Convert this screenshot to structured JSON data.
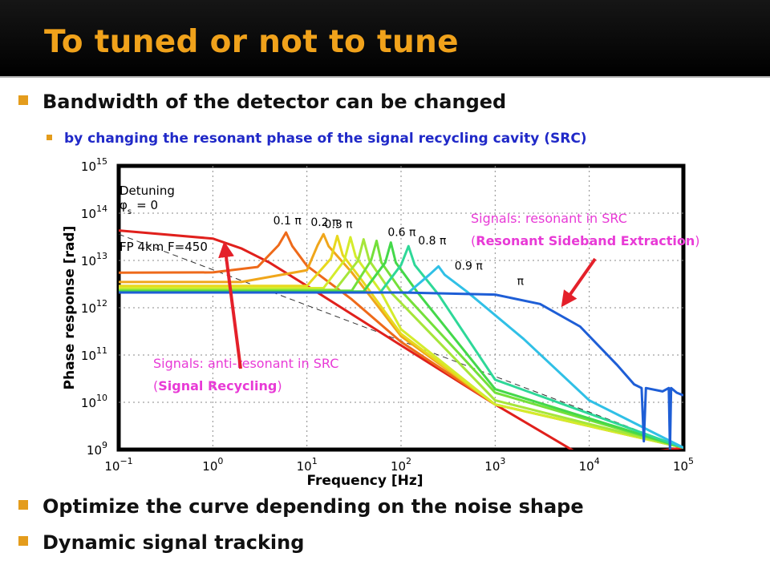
{
  "slide": {
    "title": "To tuned or not to tune",
    "bullets": {
      "b1": "Bandwidth of the detector can be changed",
      "b1_sub": "by changing the resonant phase of the signal recycling cavity (SRC)",
      "b2": "Optimize the curve depending on the noise shape",
      "b3": "Dynamic signal tracking"
    },
    "colors": {
      "title": "#f0a21b",
      "bullet_marker": "#e49c1c",
      "sub_text": "#2029c8",
      "annotation": "#e83ad6",
      "arrow": "#e4202a"
    }
  },
  "chart_data": {
    "type": "line",
    "xlabel": "Frequency [Hz]",
    "ylabel": "Phase response [rad]",
    "x_log": true,
    "y_log": true,
    "xlim": [
      0.1,
      100000
    ],
    "ylim": [
      1000000000,
      1000000000000000
    ],
    "x_ticks": [
      {
        "base": "10",
        "exp": "−1"
      },
      {
        "base": "10",
        "exp": "0"
      },
      {
        "base": "10",
        "exp": "1"
      },
      {
        "base": "10",
        "exp": "2"
      },
      {
        "base": "10",
        "exp": "3"
      },
      {
        "base": "10",
        "exp": "4"
      },
      {
        "base": "10",
        "exp": "5"
      }
    ],
    "y_ticks": [
      {
        "base": "10",
        "exp": "9"
      },
      {
        "base": "10",
        "exp": "10"
      },
      {
        "base": "10",
        "exp": "11"
      },
      {
        "base": "10",
        "exp": "12"
      },
      {
        "base": "10",
        "exp": "13"
      },
      {
        "base": "10",
        "exp": "14"
      },
      {
        "base": "10",
        "exp": "15"
      }
    ],
    "grid": true,
    "legend_title": "Detuning",
    "legend_phi": "φ",
    "legend_sub": "s",
    "legend_eq": "= 0",
    "reference_label": "FP 4km F=450",
    "series": [
      {
        "color": "#e0201c",
        "label": "",
        "points": [
          [
            0.1,
            43000000000000.0
          ],
          [
            1,
            29000000000000.0
          ],
          [
            2,
            18000000000000.0
          ],
          [
            4,
            9000000000000.0
          ],
          [
            10,
            2900000000000.0
          ],
          [
            100,
            160000000000.0
          ],
          [
            1000,
            9000000000.0
          ],
          [
            10000,
            600000000.0
          ],
          [
            100000,
            1100000000.0
          ]
        ]
      },
      {
        "color": "#ee6a1a",
        "label": "0.1 π",
        "points": [
          [
            0.1,
            5500000000000.0
          ],
          [
            1,
            5600000000000.0
          ],
          [
            3,
            7300000000000.0
          ],
          [
            5,
            21000000000000.0
          ],
          [
            6,
            39000000000000.0
          ],
          [
            7,
            20000000000000.0
          ],
          [
            10,
            7700000000000.0
          ],
          [
            30,
            1500000000000.0
          ],
          [
            100,
            190000000000.0
          ],
          [
            1000,
            9000000000.0
          ],
          [
            100000,
            1100000000.0
          ]
        ]
      },
      {
        "color": "#f0a61b",
        "label": "0.2 π",
        "points": [
          [
            0.1,
            3500000000000.0
          ],
          [
            2,
            3500000000000.0
          ],
          [
            10,
            6200000000000.0
          ],
          [
            13,
            21000000000000.0
          ],
          [
            15,
            36000000000000.0
          ],
          [
            17,
            20000000000000.0
          ],
          [
            30,
            5600000000000.0
          ],
          [
            100,
            250000000000.0
          ],
          [
            1000,
            9000000000.0
          ],
          [
            100000,
            1100000000.0
          ]
        ]
      },
      {
        "color": "#e8d81e",
        "label": "0.3 π",
        "points": [
          [
            0.1,
            2900000000000.0
          ],
          [
            10,
            2900000000000.0
          ],
          [
            18,
            11000000000000.0
          ],
          [
            21,
            33000000000000.0
          ],
          [
            24,
            13000000000000.0
          ],
          [
            40,
            3400000000000.0
          ],
          [
            100,
            280000000000.0
          ],
          [
            1000,
            9000000000.0
          ],
          [
            100000,
            1100000000.0
          ]
        ]
      },
      {
        "color": "#d4ec2c",
        "label": "",
        "points": [
          [
            0.1,
            2600000000000.0
          ],
          [
            15,
            2600000000000.0
          ],
          [
            25,
            10000000000000.0
          ],
          [
            29,
            31000000000000.0
          ],
          [
            33,
            12000000000000.0
          ],
          [
            60,
            2300000000000.0
          ],
          [
            100,
            350000000000.0
          ],
          [
            1000,
            9000000000.0
          ],
          [
            100000,
            1100000000.0
          ]
        ]
      },
      {
        "color": "#a6e63a",
        "label": "",
        "points": [
          [
            0.1,
            2400000000000.0
          ],
          [
            20,
            2400000000000.0
          ],
          [
            35,
            10000000000000.0
          ],
          [
            40,
            28000000000000.0
          ],
          [
            46,
            10000000000000.0
          ],
          [
            80,
            2000000000000.0
          ],
          [
            1000,
            11000000000.0
          ],
          [
            100000,
            1100000000.0
          ]
        ]
      },
      {
        "color": "#74e03a",
        "label": "",
        "points": [
          [
            0.1,
            2300000000000.0
          ],
          [
            30,
            2300000000000.0
          ],
          [
            48,
            10000000000000.0
          ],
          [
            55,
            26000000000000.0
          ],
          [
            62,
            9000000000000.0
          ],
          [
            100,
            2300000000000.0
          ],
          [
            1000,
            16000000000.0
          ],
          [
            100000,
            1100000000.0
          ]
        ]
      },
      {
        "color": "#44d84a",
        "label": "0.6 π",
        "points": [
          [
            0.1,
            2200000000000.0
          ],
          [
            40,
            2200000000000.0
          ],
          [
            68,
            9000000000000.0
          ],
          [
            78,
            24000000000000.0
          ],
          [
            88,
            9000000000000.0
          ],
          [
            150,
            2100000000000.0
          ],
          [
            1000,
            19000000000.0
          ],
          [
            100000,
            1100000000.0
          ]
        ]
      },
      {
        "color": "#2ed898",
        "label": "0.8 π",
        "points": [
          [
            0.1,
            2100000000000.0
          ],
          [
            60,
            2100000000000.0
          ],
          [
            100,
            8000000000000.0
          ],
          [
            120,
            20000000000000.0
          ],
          [
            140,
            8000000000000.0
          ],
          [
            250,
            1900000000000.0
          ],
          [
            1000,
            30000000000.0
          ],
          [
            100000,
            1100000000.0
          ]
        ]
      },
      {
        "color": "#30c0e6",
        "label": "0.9 π",
        "points": [
          [
            0.1,
            2100000000000.0
          ],
          [
            120,
            2100000000000.0
          ],
          [
            200,
            5000000000000.0
          ],
          [
            250,
            7500000000000.0
          ],
          [
            290,
            5000000000000.0
          ],
          [
            500,
            2200000000000.0
          ],
          [
            2000,
            220000000000.0
          ],
          [
            10000,
            11000000000.0
          ],
          [
            100000,
            1100000000.0
          ]
        ]
      },
      {
        "color": "#1e5ed6",
        "label": "π",
        "points": [
          [
            0.1,
            2100000000000.0
          ],
          [
            100,
            2100000000000.0
          ],
          [
            1000,
            1900000000000.0
          ],
          [
            3000,
            1200000000000.0
          ],
          [
            8000,
            400000000000.0
          ],
          [
            20000,
            60000000000.0
          ],
          [
            30000,
            24000000000.0
          ],
          [
            36000,
            20000000000.0
          ],
          [
            38000,
            1500000000.0
          ],
          [
            40000,
            20000000000.0
          ],
          [
            60000,
            17000000000.0
          ],
          [
            70000,
            20000000000.0
          ],
          [
            72000,
            1000000000.0
          ],
          [
            74000,
            20000000000.0
          ],
          [
            85000,
            16000000000.0
          ],
          [
            100000,
            14000000000.0
          ]
        ]
      }
    ],
    "reference_line": [
      [
        0.1,
        36000000000000.0
      ],
      [
        100000,
        1100000000.0
      ]
    ],
    "annotations": {
      "right_line1": "Signals: resonant in SRC",
      "right_line2_open": "(",
      "right_line2_bold": "Resonant Sideband Extraction",
      "right_line2_close": ")",
      "left_line1": "Signals: anti-resonant in SRC",
      "left_line2_open": "(",
      "left_line2_bold": "Signal Recycling",
      "left_line2_close": ")"
    }
  }
}
